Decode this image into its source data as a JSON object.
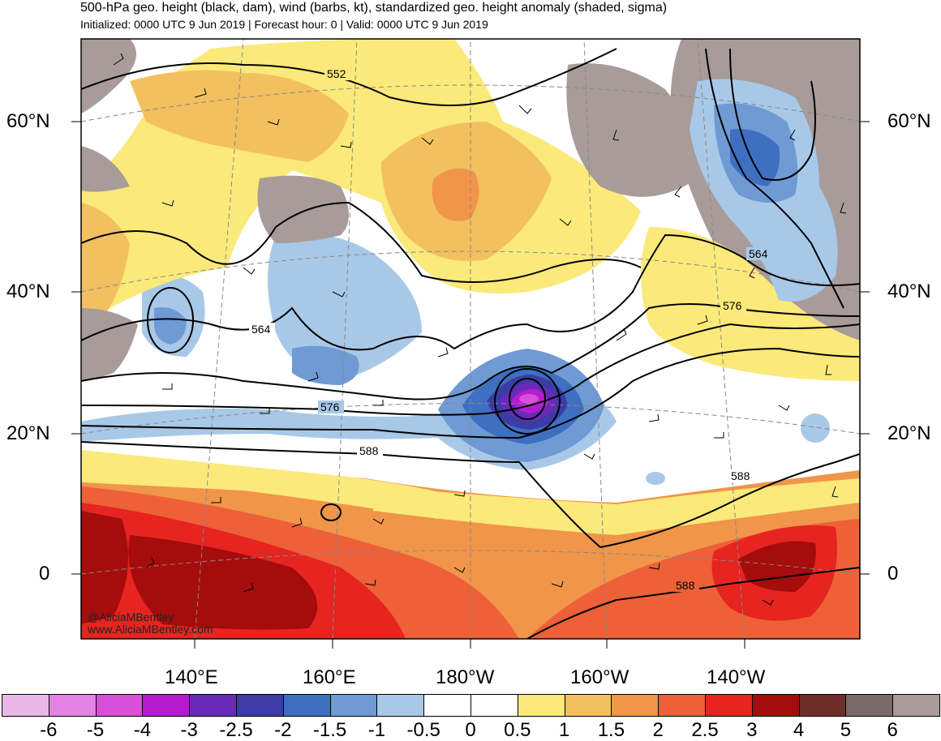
{
  "header": {
    "title": "500-hPa geo. height (black, dam), wind (barbs, kt), standardized geo. height anomaly (shaded, sigma)",
    "subtitle": "Initialized: 0000 UTC 9 Jun 2019 | Forecast hour: 0 | Valid: 0000 UTC 9 Jun 2019"
  },
  "lat_labels": [
    "60°N",
    "40°N",
    "20°N",
    "0"
  ],
  "lon_labels": [
    "140°E",
    "160°E",
    "180°W",
    "160°W",
    "140°W"
  ],
  "contour_labels": [
    "552",
    "564",
    "576",
    "588",
    "564",
    "576",
    "588",
    "588"
  ],
  "credit": {
    "handle": "@AliciaMBentley",
    "site": "www.AliciaMBentley.com"
  },
  "colorbar": {
    "labels": [
      "-6",
      "-5",
      "-4",
      "-3",
      "-2.5",
      "-2",
      "-1.5",
      "-1",
      "-0.5",
      "0",
      "0.5",
      "1",
      "1.5",
      "2",
      "2.5",
      "3",
      "4",
      "5",
      "6"
    ],
    "colors": [
      "#e8b7e8",
      "#e383e3",
      "#d84fd8",
      "#b31ccf",
      "#6a2ab8",
      "#3d3ba6",
      "#3f6fc1",
      "#6f9ad4",
      "#a8c8e8",
      "#ffffff",
      "#ffffff",
      "#fbe97a",
      "#f3c060",
      "#f0954a",
      "#ee6038",
      "#e62420",
      "#a50c0c",
      "#6e2e2a",
      "#7a6a68",
      "#a89c9a"
    ]
  }
}
